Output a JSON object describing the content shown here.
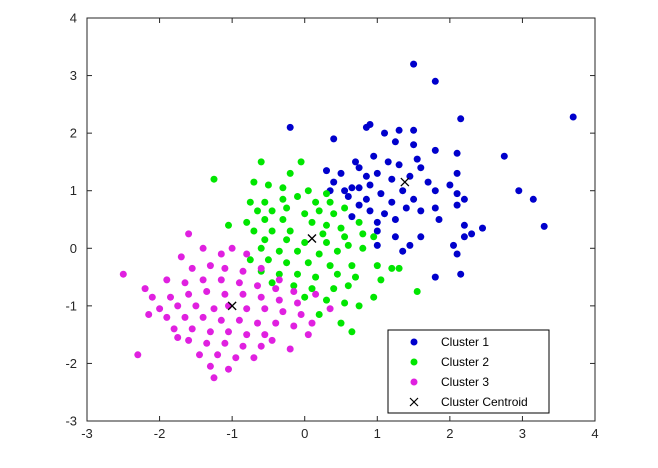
{
  "chart_data": {
    "type": "scatter",
    "xlim": [
      -3,
      4
    ],
    "ylim": [
      -3,
      4
    ],
    "x_ticks": [
      -3,
      -2,
      -1,
      0,
      1,
      2,
      3,
      4
    ],
    "y_ticks": [
      -3,
      -2,
      -1,
      0,
      1,
      2,
      3,
      4
    ],
    "grid": false,
    "box": true,
    "legend_position": "bottom-right",
    "series": [
      {
        "name": "Cluster 1",
        "color": "#0000cc",
        "marker": "dot",
        "points": [
          [
            1.5,
            3.2
          ],
          [
            1.8,
            2.9
          ],
          [
            2.15,
            2.25
          ],
          [
            3.7,
            2.28
          ],
          [
            -0.2,
            2.1
          ],
          [
            0.4,
            1.9
          ],
          [
            0.85,
            2.1
          ],
          [
            0.9,
            2.15
          ],
          [
            1.1,
            2.0
          ],
          [
            1.3,
            2.05
          ],
          [
            1.5,
            2.05
          ],
          [
            1.25,
            1.85
          ],
          [
            1.5,
            1.8
          ],
          [
            1.8,
            1.7
          ],
          [
            2.1,
            1.65
          ],
          [
            2.75,
            1.6
          ],
          [
            0.7,
            1.5
          ],
          [
            0.95,
            1.6
          ],
          [
            1.15,
            1.5
          ],
          [
            1.3,
            1.45
          ],
          [
            1.6,
            1.4
          ],
          [
            0.3,
            1.35
          ],
          [
            0.5,
            1.3
          ],
          [
            1.0,
            1.3
          ],
          [
            1.45,
            1.25
          ],
          [
            2.1,
            1.3
          ],
          [
            0.4,
            1.15
          ],
          [
            0.65,
            1.05
          ],
          [
            0.9,
            1.1
          ],
          [
            1.2,
            1.2
          ],
          [
            1.7,
            1.15
          ],
          [
            2.0,
            1.1
          ],
          [
            0.35,
            1.0
          ],
          [
            0.55,
            1.0
          ],
          [
            0.75,
            1.05
          ],
          [
            1.05,
            0.95
          ],
          [
            1.35,
            1.0
          ],
          [
            1.8,
            1.0
          ],
          [
            2.1,
            0.95
          ],
          [
            2.95,
            1.0
          ],
          [
            0.6,
            0.9
          ],
          [
            0.85,
            0.85
          ],
          [
            1.2,
            0.8
          ],
          [
            1.5,
            0.85
          ],
          [
            2.2,
            0.85
          ],
          [
            3.15,
            0.85
          ],
          [
            0.75,
            0.75
          ],
          [
            0.9,
            0.65
          ],
          [
            1.1,
            0.6
          ],
          [
            1.4,
            0.7
          ],
          [
            1.6,
            0.65
          ],
          [
            1.8,
            0.7
          ],
          [
            2.1,
            0.75
          ],
          [
            0.65,
            0.55
          ],
          [
            1.0,
            0.45
          ],
          [
            1.25,
            0.5
          ],
          [
            1.85,
            0.5
          ],
          [
            2.2,
            0.4
          ],
          [
            2.45,
            0.35
          ],
          [
            3.3,
            0.38
          ],
          [
            1.0,
            0.3
          ],
          [
            1.25,
            0.2
          ],
          [
            1.6,
            0.2
          ],
          [
            2.2,
            0.2
          ],
          [
            1.0,
            0.05
          ],
          [
            1.45,
            0.05
          ],
          [
            2.05,
            0.05
          ],
          [
            2.3,
            0.25
          ],
          [
            1.35,
            -0.05
          ],
          [
            2.1,
            -0.1
          ],
          [
            0.85,
            1.25
          ],
          [
            0.75,
            1.4
          ],
          [
            1.55,
            1.55
          ],
          [
            1.8,
            -0.5
          ],
          [
            2.15,
            -0.45
          ]
        ]
      },
      {
        "name": "Cluster 2",
        "color": "#00e600",
        "marker": "dot",
        "points": [
          [
            -0.2,
            1.3
          ],
          [
            -0.05,
            1.5
          ],
          [
            -0.6,
            1.5
          ],
          [
            -1.25,
            1.2
          ],
          [
            -0.7,
            1.15
          ],
          [
            -0.5,
            1.1
          ],
          [
            -0.3,
            1.05
          ],
          [
            0.05,
            1.0
          ],
          [
            0.3,
            0.95
          ],
          [
            -0.75,
            0.8
          ],
          [
            -0.55,
            0.8
          ],
          [
            -0.3,
            0.85
          ],
          [
            -0.1,
            0.9
          ],
          [
            0.15,
            0.8
          ],
          [
            -0.65,
            0.65
          ],
          [
            -0.45,
            0.65
          ],
          [
            -0.25,
            0.7
          ],
          [
            0.0,
            0.6
          ],
          [
            0.2,
            0.65
          ],
          [
            0.4,
            0.6
          ],
          [
            -1.05,
            0.4
          ],
          [
            -0.8,
            0.45
          ],
          [
            -0.55,
            0.5
          ],
          [
            -0.3,
            0.5
          ],
          [
            0.1,
            0.45
          ],
          [
            0.3,
            0.4
          ],
          [
            0.5,
            0.35
          ],
          [
            -0.7,
            0.3
          ],
          [
            -0.45,
            0.3
          ],
          [
            -0.2,
            0.3
          ],
          [
            0.25,
            0.25
          ],
          [
            0.55,
            0.2
          ],
          [
            0.8,
            0.25
          ],
          [
            -0.55,
            0.15
          ],
          [
            -0.25,
            0.15
          ],
          [
            0.0,
            0.1
          ],
          [
            0.3,
            0.1
          ],
          [
            0.6,
            0.05
          ],
          [
            -0.6,
            0.0
          ],
          [
            -0.35,
            -0.05
          ],
          [
            -0.1,
            -0.05
          ],
          [
            0.2,
            -0.1
          ],
          [
            0.45,
            -0.05
          ],
          [
            0.8,
            0.0
          ],
          [
            -0.75,
            -0.2
          ],
          [
            -0.5,
            -0.2
          ],
          [
            -0.25,
            -0.25
          ],
          [
            0.05,
            -0.25
          ],
          [
            0.35,
            -0.3
          ],
          [
            0.65,
            -0.3
          ],
          [
            -0.6,
            -0.4
          ],
          [
            -0.35,
            -0.45
          ],
          [
            -0.1,
            -0.45
          ],
          [
            0.15,
            -0.5
          ],
          [
            0.45,
            -0.45
          ],
          [
            0.7,
            -0.5
          ],
          [
            -0.45,
            -0.6
          ],
          [
            -0.15,
            -0.65
          ],
          [
            0.1,
            -0.7
          ],
          [
            0.4,
            -0.7
          ],
          [
            0.6,
            -0.65
          ],
          [
            0.0,
            -0.85
          ],
          [
            0.3,
            -0.9
          ],
          [
            0.55,
            -0.95
          ],
          [
            0.75,
            -1.0
          ],
          [
            0.2,
            -1.15
          ],
          [
            0.5,
            -1.3
          ],
          [
            0.65,
            -1.45
          ],
          [
            0.95,
            -0.85
          ],
          [
            1.05,
            -0.55
          ],
          [
            1.0,
            -0.3
          ],
          [
            1.2,
            -0.35
          ],
          [
            1.3,
            -0.35
          ],
          [
            1.55,
            -0.75
          ],
          [
            0.95,
            0.2
          ],
          [
            0.75,
            0.45
          ],
          [
            0.55,
            0.7
          ],
          [
            0.35,
            0.8
          ]
        ]
      },
      {
        "name": "Cluster 3",
        "color": "#e020e0",
        "marker": "dot",
        "points": [
          [
            -2.5,
            -0.45
          ],
          [
            -2.2,
            -0.7
          ],
          [
            -2.3,
            -1.85
          ],
          [
            -1.6,
            0.25
          ],
          [
            -1.7,
            -0.15
          ],
          [
            -1.4,
            0.0
          ],
          [
            -1.15,
            -0.1
          ],
          [
            -1.0,
            0.0
          ],
          [
            -0.8,
            -0.1
          ],
          [
            -1.55,
            -0.35
          ],
          [
            -1.3,
            -0.3
          ],
          [
            -1.1,
            -0.35
          ],
          [
            -0.85,
            -0.4
          ],
          [
            -0.6,
            -0.35
          ],
          [
            -1.9,
            -0.55
          ],
          [
            -1.65,
            -0.6
          ],
          [
            -1.4,
            -0.55
          ],
          [
            -1.15,
            -0.55
          ],
          [
            -0.9,
            -0.6
          ],
          [
            -0.65,
            -0.65
          ],
          [
            -0.4,
            -0.7
          ],
          [
            -2.1,
            -0.85
          ],
          [
            -1.85,
            -0.85
          ],
          [
            -1.6,
            -0.8
          ],
          [
            -1.35,
            -0.75
          ],
          [
            -1.1,
            -0.8
          ],
          [
            -0.85,
            -0.8
          ],
          [
            -0.6,
            -0.85
          ],
          [
            -0.35,
            -0.9
          ],
          [
            -0.1,
            -0.95
          ],
          [
            -2.0,
            -1.05
          ],
          [
            -1.75,
            -1.0
          ],
          [
            -1.5,
            -1.0
          ],
          [
            -1.25,
            -1.05
          ],
          [
            -1.05,
            -1.0
          ],
          [
            -0.8,
            -1.05
          ],
          [
            -0.55,
            -1.05
          ],
          [
            -0.3,
            -1.1
          ],
          [
            -0.05,
            -1.15
          ],
          [
            -1.9,
            -1.2
          ],
          [
            -1.65,
            -1.2
          ],
          [
            -1.4,
            -1.2
          ],
          [
            -1.15,
            -1.25
          ],
          [
            -0.9,
            -1.25
          ],
          [
            -0.65,
            -1.3
          ],
          [
            -0.4,
            -1.3
          ],
          [
            -0.15,
            -1.35
          ],
          [
            0.1,
            -1.3
          ],
          [
            -1.8,
            -1.4
          ],
          [
            -1.55,
            -1.4
          ],
          [
            -1.3,
            -1.45
          ],
          [
            -1.05,
            -1.45
          ],
          [
            -0.8,
            -1.5
          ],
          [
            -0.55,
            -1.5
          ],
          [
            -1.6,
            -1.6
          ],
          [
            -1.35,
            -1.65
          ],
          [
            -1.1,
            -1.65
          ],
          [
            -0.85,
            -1.7
          ],
          [
            -0.6,
            -1.7
          ],
          [
            -1.45,
            -1.85
          ],
          [
            -1.2,
            -1.85
          ],
          [
            -0.95,
            -1.9
          ],
          [
            -1.3,
            -2.05
          ],
          [
            -1.05,
            -2.1
          ],
          [
            -1.25,
            -2.25
          ],
          [
            -0.2,
            -1.75
          ],
          [
            -0.45,
            -1.6
          ],
          [
            0.05,
            -1.5
          ],
          [
            -0.7,
            -1.9
          ],
          [
            -1.75,
            -1.55
          ],
          [
            -2.15,
            -1.15
          ],
          [
            -0.35,
            -0.55
          ],
          [
            -0.15,
            -0.75
          ],
          [
            0.15,
            -0.8
          ],
          [
            0.35,
            -1.05
          ]
        ]
      }
    ],
    "centroids": {
      "name": "Cluster Centroid",
      "color": "#000000",
      "marker": "x",
      "points": [
        [
          1.38,
          1.15
        ],
        [
          0.1,
          0.17
        ],
        [
          -1.0,
          -1.0
        ]
      ]
    }
  }
}
